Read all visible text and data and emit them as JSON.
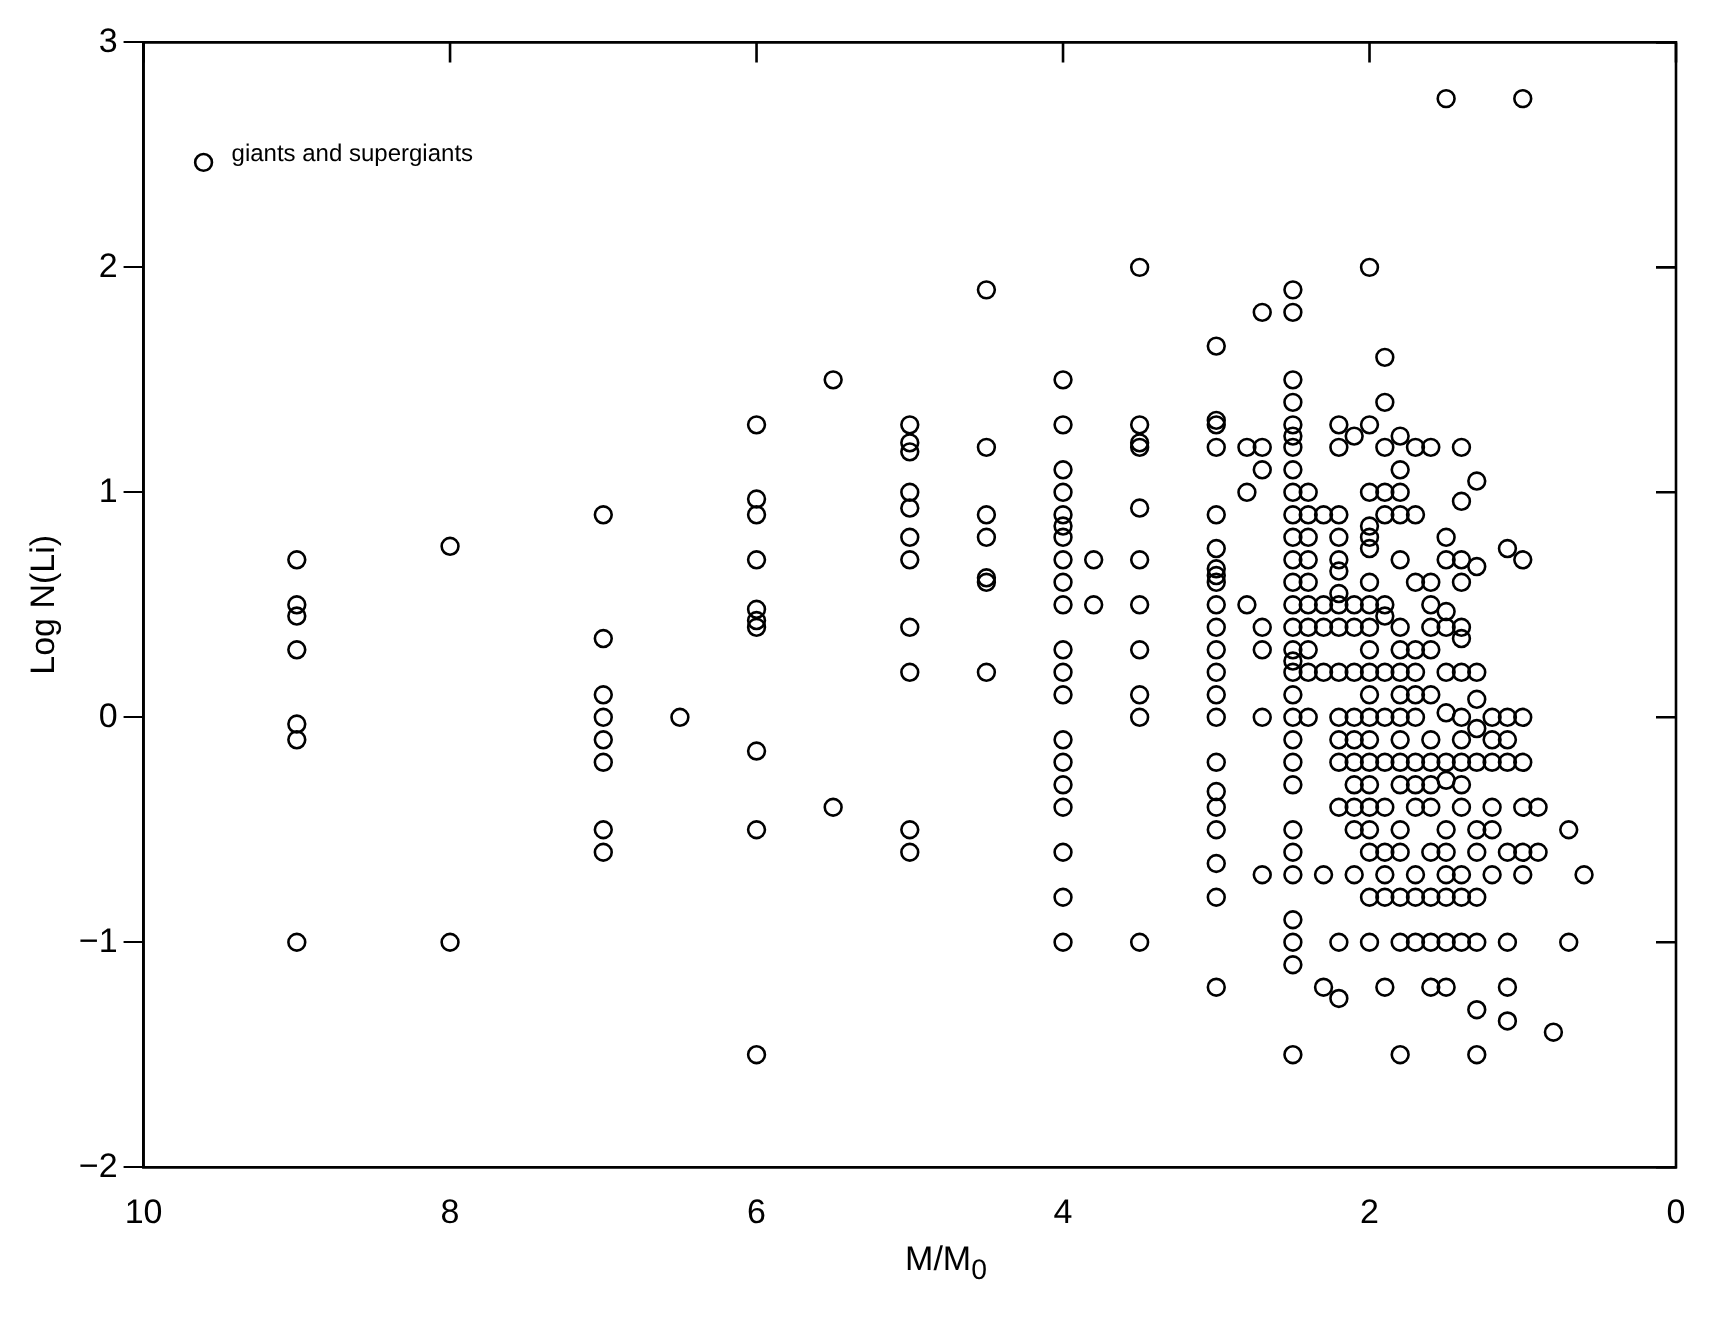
{
  "chart_data": {
    "type": "scatter",
    "xlabel": "M/M$_{0}$",
    "ylabel": "Log N(Li)",
    "xlim": [
      10,
      0
    ],
    "ylim": [
      -2,
      3
    ],
    "xticks": [
      10,
      8,
      6,
      4,
      2,
      0
    ],
    "yticks": [
      -2,
      -1,
      0,
      1,
      2,
      3
    ],
    "grid": false,
    "legend": "top left",
    "marker": "circle",
    "series": [
      {
        "name": "giants and supergiants",
        "color": "#000000",
        "x": [
          9,
          9,
          9,
          9,
          9,
          9,
          9,
          8,
          8,
          7,
          7,
          7,
          7,
          7,
          7,
          7,
          7,
          6.5,
          6,
          6,
          6,
          6,
          6,
          6,
          6,
          6,
          6,
          6,
          5.5,
          5.5,
          5,
          5,
          5,
          5,
          5,
          5,
          5,
          5,
          5,
          5,
          5,
          4.5,
          4.5,
          4.5,
          4.5,
          4.5,
          4.5,
          4.5,
          4,
          4,
          4,
          4,
          4,
          4,
          4,
          4,
          4,
          4,
          4,
          4,
          4,
          4,
          4,
          4,
          4,
          4,
          4,
          4,
          3.8,
          3.8,
          3.5,
          3.5,
          3.5,
          3.5,
          3.5,
          3.5,
          3.5,
          3.5,
          3.5,
          3.5,
          3.5,
          3,
          3,
          3,
          3,
          3,
          3,
          3,
          3,
          3,
          3,
          3,
          3,
          3,
          3,
          3,
          3,
          3,
          3,
          3,
          3,
          3,
          3,
          2.8,
          2.8,
          2.8,
          2.7,
          2.7,
          2.7,
          2.7,
          2.7,
          2.7,
          2.7,
          2.5,
          2.5,
          2.5,
          2.5,
          2.5,
          2.5,
          2.5,
          2.5,
          2.5,
          2.5,
          2.5,
          2.5,
          2.5,
          2.5,
          2.5,
          2.5,
          2.5,
          2.5,
          2.5,
          2.5,
          2.5,
          2.5,
          2.5,
          2.5,
          2.5,
          2.5,
          2.5,
          2.5,
          2.5,
          2.5,
          2.4,
          2.4,
          2.4,
          2.4,
          2.4,
          2.4,
          2.4,
          2.4,
          2.4,
          2.4,
          2.3,
          2.3,
          2.3,
          2.3,
          2.3,
          2.3,
          2.2,
          2.2,
          2.2,
          2.2,
          2.2,
          2.2,
          2.2,
          2.2,
          2.2,
          2.2,
          2.2,
          2.2,
          2.2,
          2.2,
          2.2,
          2.2,
          2.1,
          2.1,
          2.1,
          2.1,
          2.1,
          2.1,
          2.1,
          2.1,
          2.1,
          2.1,
          2.1,
          2,
          2,
          2,
          2,
          2,
          2,
          2,
          2,
          2,
          2,
          2,
          2,
          2,
          2,
          2,
          2,
          2,
          2,
          2,
          2,
          2,
          1.9,
          1.9,
          1.9,
          1.9,
          1.9,
          1.9,
          1.9,
          1.9,
          1.9,
          1.9,
          1.9,
          1.9,
          1.9,
          1.9,
          1.9,
          1.8,
          1.8,
          1.8,
          1.8,
          1.8,
          1.8,
          1.8,
          1.8,
          1.8,
          1.8,
          1.8,
          1.8,
          1.8,
          1.8,
          1.8,
          1.8,
          1.8,
          1.8,
          1.7,
          1.7,
          1.7,
          1.7,
          1.7,
          1.7,
          1.7,
          1.7,
          1.7,
          1.7,
          1.7,
          1.7,
          1.7,
          1.6,
          1.6,
          1.6,
          1.6,
          1.6,
          1.6,
          1.6,
          1.6,
          1.6,
          1.6,
          1.6,
          1.6,
          1.6,
          1.6,
          1.5,
          1.5,
          1.5,
          1.5,
          1.5,
          1.5,
          1.5,
          1.5,
          1.5,
          1.5,
          1.5,
          1.5,
          1.5,
          1.5,
          1.5,
          1.4,
          1.4,
          1.4,
          1.4,
          1.4,
          1.4,
          1.4,
          1.4,
          1.4,
          1.4,
          1.4,
          1.4,
          1.4,
          1.4,
          1.4,
          1.3,
          1.3,
          1.3,
          1.3,
          1.3,
          1.3,
          1.3,
          1.3,
          1.3,
          1.3,
          1.3,
          1.3,
          1.2,
          1.2,
          1.2,
          1.2,
          1.2,
          1.2,
          1.1,
          1.1,
          1.1,
          1.1,
          1.1,
          1.1,
          1.1,
          1.1,
          1,
          1,
          1,
          1,
          1,
          1,
          1,
          0.9,
          0.9,
          0.8,
          0.7,
          0.7,
          0.6
        ],
        "values": [
          0.7,
          0.5,
          0.45,
          0.3,
          -0.03,
          -0.1,
          -1,
          0.76,
          -1,
          0.9,
          0.35,
          0.1,
          0,
          -0.1,
          -0.2,
          -0.5,
          -0.6,
          0,
          1.3,
          0.97,
          0.9,
          0.7,
          0.48,
          0.43,
          0.4,
          -0.15,
          -0.5,
          -1.5,
          1.5,
          -0.4,
          1.3,
          1.22,
          1.18,
          1,
          0.93,
          0.8,
          0.7,
          0.4,
          0.2,
          -0.5,
          -0.6,
          1.9,
          1.2,
          0.9,
          0.8,
          0.62,
          0.6,
          0.2,
          1.5,
          1.3,
          1.1,
          1,
          0.9,
          0.85,
          0.8,
          0.7,
          0.6,
          0.5,
          0.3,
          0.2,
          0.1,
          -0.1,
          -0.2,
          -0.3,
          -0.4,
          -0.6,
          -0.8,
          -1,
          0.7,
          0.5,
          2,
          1.3,
          1.22,
          1.2,
          0.93,
          0.7,
          0.5,
          0.3,
          0.1,
          0,
          -1,
          1.65,
          1.32,
          1.3,
          1.2,
          0.9,
          0.75,
          0.66,
          0.63,
          0.6,
          0.5,
          0.4,
          0.3,
          0.2,
          0.1,
          0,
          -0.2,
          -0.33,
          -0.4,
          -0.5,
          -0.65,
          -0.8,
          -1.2,
          1.2,
          1,
          0.5,
          1.8,
          1.2,
          1.1,
          0.4,
          0.3,
          0,
          -0.7,
          1.9,
          1.8,
          1.5,
          1.4,
          1.3,
          1.25,
          1.2,
          1.1,
          1,
          0.9,
          0.8,
          0.7,
          0.6,
          0.5,
          0.4,
          0.3,
          0.25,
          0.2,
          0.1,
          0,
          -0.1,
          -0.2,
          -0.3,
          -0.5,
          -0.6,
          -0.7,
          -0.9,
          -1,
          -1.1,
          -1.5,
          1,
          0.9,
          0.8,
          0.7,
          0.6,
          0.5,
          0.4,
          0.3,
          0.2,
          0,
          0.9,
          0.5,
          0.4,
          0.2,
          -0.7,
          -1.2,
          1.3,
          1.2,
          0.9,
          0.8,
          0.7,
          0.65,
          0.55,
          0.5,
          0.4,
          0.2,
          0,
          -0.1,
          -0.2,
          -0.4,
          -1,
          -1.25,
          1.25,
          0.5,
          0.4,
          0.2,
          0,
          -0.1,
          -0.2,
          -0.3,
          -0.4,
          -0.5,
          -0.7,
          2,
          1.3,
          1,
          0.85,
          0.8,
          0.75,
          0.6,
          0.5,
          0.4,
          0.3,
          0.2,
          0.1,
          0,
          -0.1,
          -0.2,
          -0.3,
          -0.4,
          -0.5,
          -0.6,
          -0.8,
          -1,
          1.6,
          1.4,
          1.2,
          1,
          0.9,
          0.5,
          0.45,
          0.2,
          0,
          -0.2,
          -0.4,
          -0.6,
          -0.7,
          -0.8,
          -1.2,
          1.25,
          1.1,
          1,
          0.9,
          0.7,
          0.4,
          0.3,
          0.2,
          0.1,
          0,
          -0.1,
          -0.2,
          -0.3,
          -0.5,
          -0.6,
          -0.8,
          -1,
          -1.5,
          1.2,
          0.9,
          0.6,
          0.3,
          0.2,
          0.1,
          0,
          -0.2,
          -0.3,
          -0.4,
          -0.7,
          -0.8,
          -1,
          1.2,
          0.6,
          0.5,
          0.4,
          0.3,
          0.1,
          -0.1,
          -0.2,
          -0.3,
          -0.4,
          -0.6,
          -0.8,
          -1,
          -1.2,
          2.75,
          0.8,
          0.7,
          0.47,
          0.4,
          0.2,
          0.02,
          -0.2,
          -0.28,
          -0.5,
          -0.6,
          -0.7,
          -0.8,
          -1,
          -1.2,
          1.2,
          0.96,
          0.7,
          0.6,
          0.4,
          0.35,
          0.2,
          0,
          -0.1,
          -0.2,
          -0.3,
          -0.4,
          -0.7,
          -0.8,
          -1,
          1.05,
          0.67,
          0.2,
          0.08,
          -0.05,
          -0.2,
          -0.5,
          -0.6,
          -0.8,
          -1,
          -1.3,
          -1.5,
          0,
          -0.1,
          -0.2,
          -0.4,
          -0.5,
          -0.7,
          0.75,
          0,
          -0.1,
          -0.2,
          -0.6,
          -1,
          -1.2,
          -1.35,
          2.75,
          0.7,
          0,
          -0.2,
          -0.4,
          -0.6,
          -0.7,
          -0.4,
          -0.6,
          -1.4,
          -0.5,
          -1,
          -0.7
        ]
      }
    ]
  }
}
